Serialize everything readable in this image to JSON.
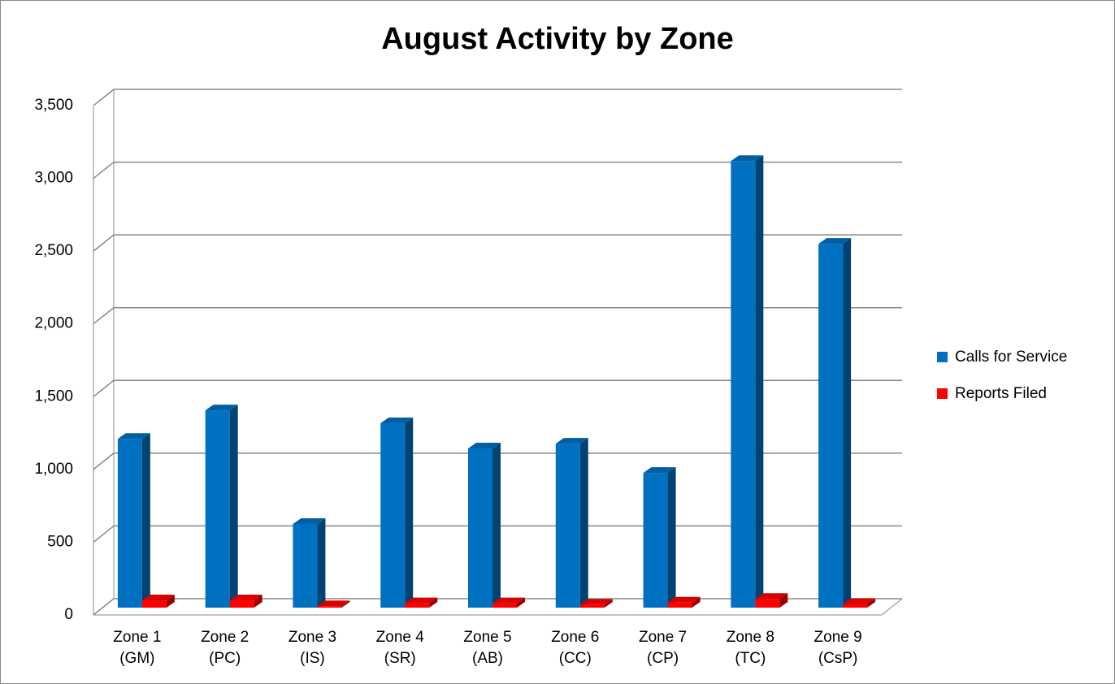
{
  "chart_data": {
    "type": "bar3d",
    "title": "August Activity by Zone",
    "categories": [
      "Zone 1\n(GM)",
      "Zone 2\n(PC)",
      "Zone 3\n(IS)",
      "Zone 4\n(SR)",
      "Zone 5\n(AB)",
      "Zone 6\n(CC)",
      "Zone 7\n(CP)",
      "Zone 8\n(TC)",
      "Zone 9\n(CsP)"
    ],
    "series": [
      {
        "name": "Calls for Service",
        "color": "#0070c0",
        "values": [
          1160,
          1356,
          575,
          1267,
          1094,
          1127,
          926,
          3069,
          2500
        ]
      },
      {
        "name": "Reports Filed",
        "color": "#ff0000",
        "values": [
          50,
          50,
          10,
          30,
          30,
          20,
          35,
          60,
          25
        ]
      }
    ],
    "ylim": [
      0,
      3500
    ],
    "yticks": [
      0,
      500,
      {
        "value": 1000,
        "label": "1,000"
      },
      {
        "value": 1500,
        "label": "1,500"
      },
      {
        "value": 2000,
        "label": "2,000"
      },
      {
        "value": 2500,
        "label": "2,500"
      },
      {
        "value": 3000,
        "label": "3,000"
      },
      {
        "value": 3500,
        "label": "3,500"
      }
    ],
    "grid": true,
    "legend": "right"
  }
}
